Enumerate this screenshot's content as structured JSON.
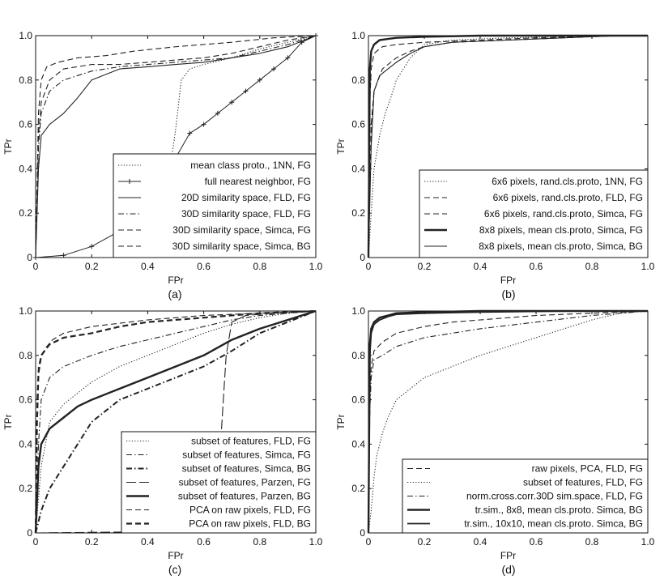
{
  "chart_data": [
    {
      "type": "line",
      "caption": "(a)",
      "xlabel": "FPr",
      "ylabel": "TPr",
      "xlim": [
        0,
        1
      ],
      "ylim": [
        0,
        1
      ],
      "xticks": [
        "0",
        "0.2",
        "0.4",
        "0.6",
        "0.8",
        "1.0"
      ],
      "yticks": [
        "0",
        "0.2",
        "0.4",
        "0.6",
        "0.8",
        "1.0"
      ],
      "grid": false,
      "legend_position": "bottom-right",
      "series": [
        {
          "name": "mean class proto., 1NN, FG",
          "style": "dotted",
          "x": [
            0,
            0.2,
            0.4,
            0.46,
            0.47,
            0.48,
            0.5,
            0.52,
            0.55,
            0.6,
            0.7,
            0.8,
            0.9,
            1.0
          ],
          "y": [
            0,
            0,
            0,
            0.02,
            0.2,
            0.4,
            0.58,
            0.8,
            0.85,
            0.87,
            0.9,
            0.94,
            0.97,
            1.0
          ]
        },
        {
          "name": "full nearest neighbor, FG",
          "style": "plus",
          "x": [
            0,
            0.1,
            0.2,
            0.3,
            0.35,
            0.4,
            0.45,
            0.5,
            0.55,
            0.6,
            0.65,
            0.7,
            0.75,
            0.8,
            0.85,
            0.9,
            0.95,
            1.0
          ],
          "y": [
            0,
            0.01,
            0.05,
            0.12,
            0.2,
            0.3,
            0.38,
            0.45,
            0.56,
            0.6,
            0.65,
            0.7,
            0.75,
            0.8,
            0.85,
            0.9,
            0.97,
            1.0
          ]
        },
        {
          "name": "20D similarity space, FLD, FG",
          "style": "solid",
          "x": [
            0,
            0.01,
            0.02,
            0.05,
            0.1,
            0.15,
            0.2,
            0.3,
            0.4,
            0.5,
            0.6,
            0.7,
            0.8,
            0.9,
            1.0
          ],
          "y": [
            0,
            0.4,
            0.55,
            0.6,
            0.65,
            0.72,
            0.8,
            0.85,
            0.86,
            0.87,
            0.88,
            0.9,
            0.92,
            0.95,
            1.0
          ]
        },
        {
          "name": "30D similarity space, FLD, FG",
          "style": "dashdot",
          "x": [
            0,
            0.01,
            0.02,
            0.05,
            0.1,
            0.2,
            0.3,
            0.4,
            0.5,
            0.6,
            0.7,
            0.8,
            0.9,
            1.0
          ],
          "y": [
            0,
            0.5,
            0.65,
            0.75,
            0.8,
            0.84,
            0.86,
            0.87,
            0.88,
            0.89,
            0.9,
            0.93,
            0.96,
            1.0
          ]
        },
        {
          "name": "30D similarity space, Simca, FG",
          "style": "dashed",
          "x": [
            0,
            0.01,
            0.02,
            0.05,
            0.1,
            0.2,
            0.3,
            0.4,
            0.5,
            0.6,
            0.7,
            0.8,
            0.9,
            1.0
          ],
          "y": [
            0,
            0.55,
            0.7,
            0.8,
            0.85,
            0.87,
            0.87,
            0.88,
            0.89,
            0.9,
            0.92,
            0.95,
            0.98,
            1.0
          ]
        },
        {
          "name": "30D similarity space, Simca, BG",
          "style": "dashed",
          "x": [
            0,
            0.005,
            0.01,
            0.02,
            0.04,
            0.08,
            0.15,
            0.25,
            0.35,
            0.5,
            0.7,
            0.85,
            1.0
          ],
          "y": [
            0,
            0.3,
            0.65,
            0.8,
            0.86,
            0.88,
            0.9,
            0.91,
            0.93,
            0.95,
            0.97,
            0.99,
            1.0
          ]
        }
      ]
    },
    {
      "type": "line",
      "caption": "(b)",
      "xlabel": "FPr",
      "ylabel": "TPr",
      "xlim": [
        0,
        1
      ],
      "ylim": [
        0,
        1
      ],
      "xticks": [
        "0",
        "0.2",
        "0.4",
        "0.6",
        "0.8",
        "1.0"
      ],
      "yticks": [
        "0",
        "0.2",
        "0.4",
        "0.6",
        "0.8",
        "1.0"
      ],
      "grid": false,
      "legend_position": "bottom-right",
      "series": [
        {
          "name": "6x6 pixels, rand.cls.proto, 1NN, FG",
          "style": "dotted",
          "x": [
            0,
            0.01,
            0.02,
            0.04,
            0.06,
            0.08,
            0.1,
            0.15,
            0.2,
            0.3,
            0.5,
            0.7,
            0.9,
            1.0
          ],
          "y": [
            0,
            0.2,
            0.4,
            0.55,
            0.65,
            0.72,
            0.8,
            0.9,
            0.96,
            0.98,
            0.99,
            0.995,
            1.0,
            1.0
          ]
        },
        {
          "name": "6x6 pixels, rand.cls.proto, FLD, FG",
          "style": "dashed",
          "x": [
            0,
            0.005,
            0.01,
            0.02,
            0.05,
            0.1,
            0.2,
            0.4,
            0.6,
            0.9,
            1.0
          ],
          "y": [
            0,
            0.7,
            0.85,
            0.92,
            0.95,
            0.96,
            0.97,
            0.98,
            0.99,
            1.0,
            1.0
          ]
        },
        {
          "name": "6x6 pixels, rand.cls.proto, Simca, FG",
          "style": "dashed",
          "x": [
            0,
            0.01,
            0.02,
            0.05,
            0.1,
            0.15,
            0.2,
            0.3,
            0.5,
            0.7,
            0.9,
            1.0
          ],
          "y": [
            0,
            0.6,
            0.75,
            0.85,
            0.9,
            0.93,
            0.95,
            0.97,
            0.98,
            0.99,
            1.0,
            1.0
          ]
        },
        {
          "name": "8x8 pixels, mean cls.proto, Simca, FG",
          "style": "solid-bold",
          "x": [
            0,
            0.005,
            0.01,
            0.02,
            0.04,
            0.07,
            0.1,
            0.2,
            0.4,
            0.6,
            0.9,
            1.0
          ],
          "y": [
            0,
            0.85,
            0.93,
            0.96,
            0.98,
            0.985,
            0.99,
            0.995,
            1.0,
            1.0,
            1.0,
            1.0
          ]
        },
        {
          "name": "8x8 pixels, mean cls.proto, Simca, BG",
          "style": "solid",
          "x": [
            0,
            0.01,
            0.02,
            0.04,
            0.07,
            0.1,
            0.15,
            0.2,
            0.3,
            0.5,
            0.7,
            0.9,
            1.0
          ],
          "y": [
            0,
            0.5,
            0.75,
            0.82,
            0.85,
            0.88,
            0.92,
            0.95,
            0.97,
            0.98,
            0.99,
            1.0,
            1.0
          ]
        }
      ]
    },
    {
      "type": "line",
      "caption": "(c)",
      "xlabel": "FPr",
      "ylabel": "TPr",
      "xlim": [
        0,
        1
      ],
      "ylim": [
        0,
        1
      ],
      "xticks": [
        "0",
        "0.2",
        "0.4",
        "0.6",
        "0.8",
        "1.0"
      ],
      "yticks": [
        "0",
        "0.2",
        "0.4",
        "0.6",
        "0.8",
        "1.0"
      ],
      "grid": false,
      "legend_position": "bottom-right",
      "series": [
        {
          "name": "subset of features, FLD, FG",
          "style": "dotted",
          "x": [
            0,
            0.02,
            0.05,
            0.1,
            0.15,
            0.2,
            0.3,
            0.4,
            0.5,
            0.6,
            0.7,
            0.8,
            0.9,
            1.0
          ],
          "y": [
            0,
            0.3,
            0.5,
            0.58,
            0.63,
            0.68,
            0.75,
            0.8,
            0.85,
            0.9,
            0.94,
            0.97,
            0.99,
            1.0
          ]
        },
        {
          "name": "subset of features, Simca, FG",
          "style": "dashdot",
          "x": [
            0,
            0.01,
            0.02,
            0.05,
            0.1,
            0.2,
            0.3,
            0.4,
            0.5,
            0.6,
            0.7,
            0.8,
            0.9,
            1.0
          ],
          "y": [
            0,
            0.4,
            0.6,
            0.7,
            0.75,
            0.8,
            0.84,
            0.87,
            0.9,
            0.93,
            0.96,
            0.98,
            0.99,
            1.0
          ]
        },
        {
          "name": "subset of features, Simca, BG",
          "style": "dashdot-bold",
          "x": [
            0,
            0.02,
            0.05,
            0.1,
            0.15,
            0.2,
            0.25,
            0.3,
            0.4,
            0.5,
            0.6,
            0.7,
            0.8,
            0.9,
            1.0
          ],
          "y": [
            0,
            0.1,
            0.2,
            0.3,
            0.4,
            0.5,
            0.55,
            0.6,
            0.65,
            0.7,
            0.75,
            0.82,
            0.9,
            0.95,
            1.0
          ]
        },
        {
          "name": "subset of features, Parzen, FG",
          "style": "longdash",
          "x": [
            0,
            0.4,
            0.6,
            0.62,
            0.64,
            0.66,
            0.67,
            0.68,
            0.7,
            0.75,
            0.85,
            1.0
          ],
          "y": [
            0,
            0.005,
            0.01,
            0.05,
            0.2,
            0.4,
            0.6,
            0.8,
            0.95,
            0.98,
            0.99,
            1.0
          ]
        },
        {
          "name": "subset of features, Parzen, BG",
          "style": "solid-bold",
          "x": [
            0,
            0.01,
            0.02,
            0.05,
            0.1,
            0.15,
            0.2,
            0.3,
            0.4,
            0.5,
            0.6,
            0.7,
            0.8,
            0.9,
            1.0
          ],
          "y": [
            0,
            0.3,
            0.4,
            0.47,
            0.52,
            0.57,
            0.6,
            0.65,
            0.7,
            0.75,
            0.8,
            0.87,
            0.92,
            0.96,
            1.0
          ]
        },
        {
          "name": "PCA on raw pixels, FLD, FG",
          "style": "dashed",
          "x": [
            0,
            0.005,
            0.01,
            0.02,
            0.04,
            0.06,
            0.1,
            0.2,
            0.4,
            0.6,
            0.8,
            1.0
          ],
          "y": [
            0,
            0.6,
            0.75,
            0.8,
            0.84,
            0.87,
            0.9,
            0.93,
            0.96,
            0.98,
            0.99,
            1.0
          ]
        },
        {
          "name": "PCA on raw pixels, FLD, BG",
          "style": "dashed-bold",
          "x": [
            0,
            0.005,
            0.01,
            0.02,
            0.05,
            0.1,
            0.2,
            0.3,
            0.4,
            0.6,
            0.8,
            1.0
          ],
          "y": [
            0,
            0.5,
            0.72,
            0.8,
            0.85,
            0.88,
            0.9,
            0.93,
            0.95,
            0.97,
            0.99,
            1.0
          ]
        }
      ]
    },
    {
      "type": "line",
      "caption": "(d)",
      "xlabel": "FPr",
      "ylabel": "TPr",
      "xlim": [
        0,
        1
      ],
      "ylim": [
        0,
        1
      ],
      "xticks": [
        "0",
        "0.2",
        "0.4",
        "0.6",
        "0.8",
        "1.0"
      ],
      "yticks": [
        "0",
        "0.2",
        "0.4",
        "0.6",
        "0.8",
        "1.0"
      ],
      "grid": false,
      "legend_position": "bottom-right",
      "series": [
        {
          "name": "raw pixels, PCA, FLD, FG",
          "style": "dashed",
          "x": [
            0,
            0.005,
            0.01,
            0.02,
            0.05,
            0.1,
            0.2,
            0.3,
            0.4,
            0.6,
            0.8,
            1.0
          ],
          "y": [
            0,
            0.6,
            0.75,
            0.82,
            0.86,
            0.9,
            0.93,
            0.95,
            0.96,
            0.98,
            0.99,
            1.0
          ]
        },
        {
          "name": "subset of features, FLD, FG",
          "style": "dotted",
          "x": [
            0,
            0.01,
            0.02,
            0.03,
            0.05,
            0.07,
            0.1,
            0.15,
            0.2,
            0.3,
            0.4,
            0.5,
            0.6,
            0.7,
            0.8,
            0.9,
            1.0
          ],
          "y": [
            0,
            0.1,
            0.25,
            0.35,
            0.45,
            0.52,
            0.6,
            0.65,
            0.7,
            0.75,
            0.8,
            0.84,
            0.88,
            0.92,
            0.96,
            0.99,
            1.0
          ]
        },
        {
          "name": "norm.cross.corr.30D sim.space, FLD, FG",
          "style": "dashdot",
          "x": [
            0,
            0.005,
            0.01,
            0.02,
            0.05,
            0.1,
            0.2,
            0.3,
            0.4,
            0.6,
            0.8,
            1.0
          ],
          "y": [
            0,
            0.55,
            0.7,
            0.78,
            0.8,
            0.84,
            0.88,
            0.9,
            0.92,
            0.95,
            0.98,
            1.0
          ]
        },
        {
          "name": "tr.sim., 8x8, mean cls.proto. Simca, BG",
          "style": "solid-bold",
          "x": [
            0,
            0.005,
            0.01,
            0.02,
            0.04,
            0.07,
            0.1,
            0.2,
            0.4,
            0.7,
            1.0
          ],
          "y": [
            0,
            0.85,
            0.92,
            0.95,
            0.97,
            0.98,
            0.99,
            0.995,
            1.0,
            1.0,
            1.0
          ]
        },
        {
          "name": "tr.sim., 10x10, mean cls.proto. Simca, BG",
          "style": "solid-bold2",
          "x": [
            0,
            0.005,
            0.01,
            0.02,
            0.04,
            0.07,
            0.1,
            0.2,
            0.4,
            0.7,
            1.0
          ],
          "y": [
            0,
            0.8,
            0.9,
            0.94,
            0.96,
            0.975,
            0.985,
            0.99,
            0.995,
            1.0,
            1.0
          ]
        }
      ]
    }
  ]
}
